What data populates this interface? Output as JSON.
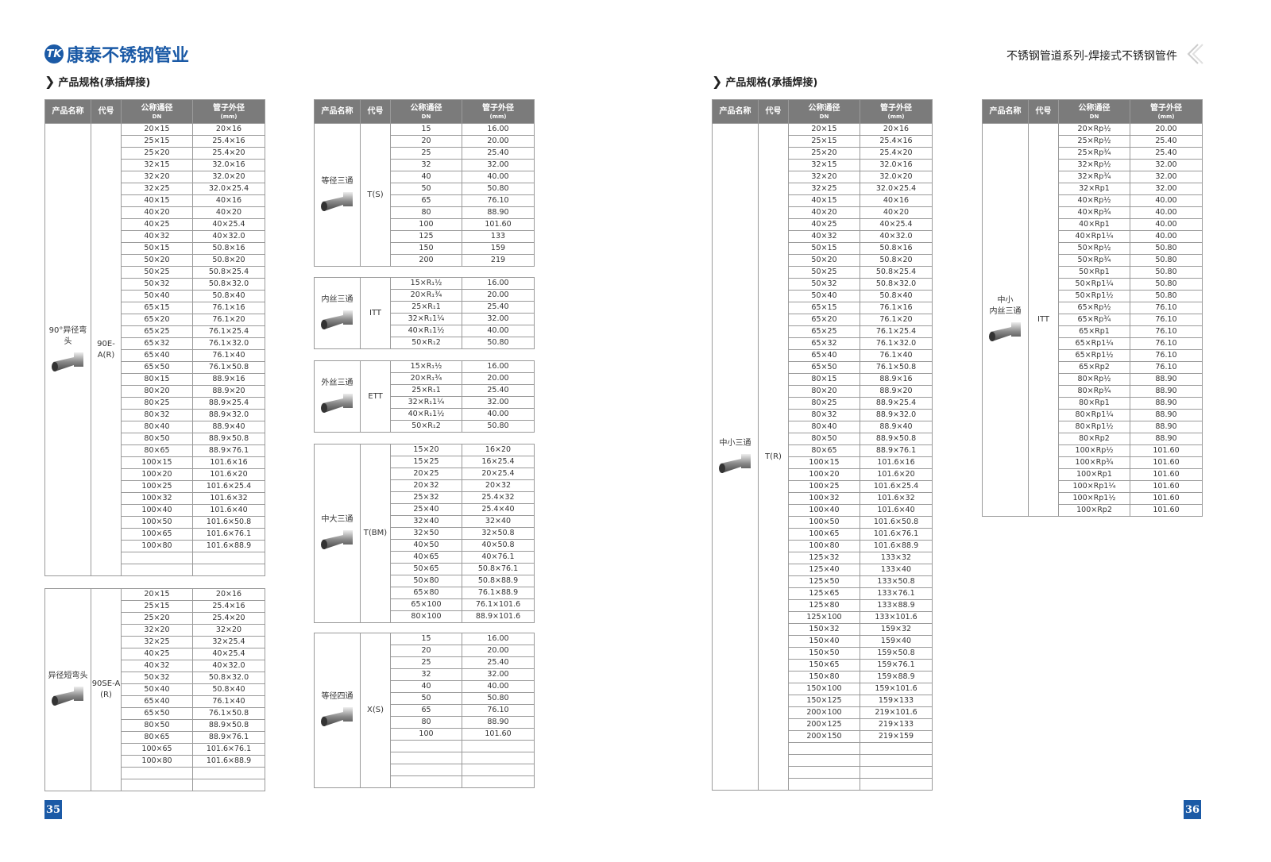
{
  "header": {
    "brand_mark": "TK",
    "brand_name": "康泰不锈钢管业",
    "series_title": "不锈钢管道系列-焊接式不锈钢管件"
  },
  "sections": {
    "left_title": "产品规格(承插焊接)",
    "right_title": "产品规格(承插焊接)"
  },
  "columns": {
    "name": "产品名称",
    "code": "代号",
    "dn": "公称通径",
    "dn_unit": "DN",
    "od": "管子外径",
    "od_unit": "(mm)"
  },
  "tables": {
    "elbow_90_reducing": {
      "name": "90°异径弯头",
      "code": "90E-A(R)",
      "header": true,
      "empty_rows": 2,
      "rows": [
        [
          "20×15",
          "20×16"
        ],
        [
          "25×15",
          "25.4×16"
        ],
        [
          "25×20",
          "25.4×20"
        ],
        [
          "32×15",
          "32.0×16"
        ],
        [
          "32×20",
          "32.0×20"
        ],
        [
          "32×25",
          "32.0×25.4"
        ],
        [
          "40×15",
          "40×16"
        ],
        [
          "40×20",
          "40×20"
        ],
        [
          "40×25",
          "40×25.4"
        ],
        [
          "40×32",
          "40×32.0"
        ],
        [
          "50×15",
          "50.8×16"
        ],
        [
          "50×20",
          "50.8×20"
        ],
        [
          "50×25",
          "50.8×25.4"
        ],
        [
          "50×32",
          "50.8×32.0"
        ],
        [
          "50×40",
          "50.8×40"
        ],
        [
          "65×15",
          "76.1×16"
        ],
        [
          "65×20",
          "76.1×20"
        ],
        [
          "65×25",
          "76.1×25.4"
        ],
        [
          "65×32",
          "76.1×32.0"
        ],
        [
          "65×40",
          "76.1×40"
        ],
        [
          "65×50",
          "76.1×50.8"
        ],
        [
          "80×15",
          "88.9×16"
        ],
        [
          "80×20",
          "88.9×20"
        ],
        [
          "80×25",
          "88.9×25.4"
        ],
        [
          "80×32",
          "88.9×32.0"
        ],
        [
          "80×40",
          "88.9×40"
        ],
        [
          "80×50",
          "88.9×50.8"
        ],
        [
          "80×65",
          "88.9×76.1"
        ],
        [
          "100×15",
          "101.6×16"
        ],
        [
          "100×20",
          "101.6×20"
        ],
        [
          "100×25",
          "101.6×25.4"
        ],
        [
          "100×32",
          "101.6×32"
        ],
        [
          "100×40",
          "101.6×40"
        ],
        [
          "100×50",
          "101.6×50.8"
        ],
        [
          "100×65",
          "101.6×76.1"
        ],
        [
          "100×80",
          "101.6×88.9"
        ]
      ]
    },
    "short_elbow_reducing": {
      "name": "异径短弯头",
      "code": "90SE-A (R)",
      "header": false,
      "empty_rows": 2,
      "rows": [
        [
          "20×15",
          "20×16"
        ],
        [
          "25×15",
          "25.4×16"
        ],
        [
          "25×20",
          "25.4×20"
        ],
        [
          "32×20",
          "32×20"
        ],
        [
          "32×25",
          "32×25.4"
        ],
        [
          "40×25",
          "40×25.4"
        ],
        [
          "40×32",
          "40×32.0"
        ],
        [
          "50×32",
          "50.8×32.0"
        ],
        [
          "50×40",
          "50.8×40"
        ],
        [
          "65×40",
          "76.1×40"
        ],
        [
          "65×50",
          "76.1×50.8"
        ],
        [
          "80×50",
          "88.9×50.8"
        ],
        [
          "80×65",
          "88.9×76.1"
        ],
        [
          "100×65",
          "101.6×76.1"
        ],
        [
          "100×80",
          "101.6×88.9"
        ]
      ]
    },
    "equal_tee": {
      "name": "等径三通",
      "code": "T(S)",
      "header": true,
      "empty_rows": 0,
      "rows": [
        [
          "15",
          "16.00"
        ],
        [
          "20",
          "20.00"
        ],
        [
          "25",
          "25.40"
        ],
        [
          "32",
          "32.00"
        ],
        [
          "40",
          "40.00"
        ],
        [
          "50",
          "50.80"
        ],
        [
          "65",
          "76.10"
        ],
        [
          "80",
          "88.90"
        ],
        [
          "100",
          "101.60"
        ],
        [
          "125",
          "133"
        ],
        [
          "150",
          "159"
        ],
        [
          "200",
          "219"
        ]
      ]
    },
    "female_thread_tee": {
      "name": "内丝三通",
      "code": "ITT",
      "header": false,
      "empty_rows": 0,
      "rows": [
        [
          "15×R₁½",
          "16.00"
        ],
        [
          "20×R₁¾",
          "20.00"
        ],
        [
          "25×R₁1",
          "25.40"
        ],
        [
          "32×R₁1¼",
          "32.00"
        ],
        [
          "40×R₁1½",
          "40.00"
        ],
        [
          "50×R₁2",
          "50.80"
        ]
      ]
    },
    "male_thread_tee": {
      "name": "外丝三通",
      "code": "ETT",
      "header": false,
      "empty_rows": 0,
      "rows": [
        [
          "15×R₁½",
          "16.00"
        ],
        [
          "20×R₁¾",
          "20.00"
        ],
        [
          "25×R₁1",
          "25.40"
        ],
        [
          "32×R₁1¼",
          "32.00"
        ],
        [
          "40×R₁1½",
          "40.00"
        ],
        [
          "50×R₁2",
          "50.80"
        ]
      ]
    },
    "large_reducing_tee": {
      "name": "中大三通",
      "code": "T(BM)",
      "header": false,
      "empty_rows": 0,
      "rows": [
        [
          "15×20",
          "16×20"
        ],
        [
          "15×25",
          "16×25.4"
        ],
        [
          "20×25",
          "20×25.4"
        ],
        [
          "20×32",
          "20×32"
        ],
        [
          "25×32",
          "25.4×32"
        ],
        [
          "25×40",
          "25.4×40"
        ],
        [
          "32×40",
          "32×40"
        ],
        [
          "32×50",
          "32×50.8"
        ],
        [
          "40×50",
          "40×50.8"
        ],
        [
          "40×65",
          "40×76.1"
        ],
        [
          "50×65",
          "50.8×76.1"
        ],
        [
          "50×80",
          "50.8×88.9"
        ],
        [
          "65×80",
          "76.1×88.9"
        ],
        [
          "65×100",
          "76.1×101.6"
        ],
        [
          "80×100",
          "88.9×101.6"
        ]
      ]
    },
    "equal_cross": {
      "name": "等径四通",
      "code": "X(S)",
      "header": false,
      "empty_rows": 4,
      "rows": [
        [
          "15",
          "16.00"
        ],
        [
          "20",
          "20.00"
        ],
        [
          "25",
          "25.40"
        ],
        [
          "32",
          "32.00"
        ],
        [
          "40",
          "40.00"
        ],
        [
          "50",
          "50.80"
        ],
        [
          "65",
          "76.10"
        ],
        [
          "80",
          "88.90"
        ],
        [
          "100",
          "101.60"
        ]
      ]
    },
    "small_reducing_tee": {
      "name": "中小三通",
      "code": "T(R)",
      "header": true,
      "empty_rows": 4,
      "rows": [
        [
          "20×15",
          "20×16"
        ],
        [
          "25×15",
          "25.4×16"
        ],
        [
          "25×20",
          "25.4×20"
        ],
        [
          "32×15",
          "32.0×16"
        ],
        [
          "32×20",
          "32.0×20"
        ],
        [
          "32×25",
          "32.0×25.4"
        ],
        [
          "40×15",
          "40×16"
        ],
        [
          "40×20",
          "40×20"
        ],
        [
          "40×25",
          "40×25.4"
        ],
        [
          "40×32",
          "40×32.0"
        ],
        [
          "50×15",
          "50.8×16"
        ],
        [
          "50×20",
          "50.8×20"
        ],
        [
          "50×25",
          "50.8×25.4"
        ],
        [
          "50×32",
          "50.8×32.0"
        ],
        [
          "50×40",
          "50.8×40"
        ],
        [
          "65×15",
          "76.1×16"
        ],
        [
          "65×20",
          "76.1×20"
        ],
        [
          "65×25",
          "76.1×25.4"
        ],
        [
          "65×32",
          "76.1×32.0"
        ],
        [
          "65×40",
          "76.1×40"
        ],
        [
          "65×50",
          "76.1×50.8"
        ],
        [
          "80×15",
          "88.9×16"
        ],
        [
          "80×20",
          "88.9×20"
        ],
        [
          "80×25",
          "88.9×25.4"
        ],
        [
          "80×32",
          "88.9×32.0"
        ],
        [
          "80×40",
          "88.9×40"
        ],
        [
          "80×50",
          "88.9×50.8"
        ],
        [
          "80×65",
          "88.9×76.1"
        ],
        [
          "100×15",
          "101.6×16"
        ],
        [
          "100×20",
          "101.6×20"
        ],
        [
          "100×25",
          "101.6×25.4"
        ],
        [
          "100×32",
          "101.6×32"
        ],
        [
          "100×40",
          "101.6×40"
        ],
        [
          "100×50",
          "101.6×50.8"
        ],
        [
          "100×65",
          "101.6×76.1"
        ],
        [
          "100×80",
          "101.6×88.9"
        ],
        [
          "125×32",
          "133×32"
        ],
        [
          "125×40",
          "133×40"
        ],
        [
          "125×50",
          "133×50.8"
        ],
        [
          "125×65",
          "133×76.1"
        ],
        [
          "125×80",
          "133×88.9"
        ],
        [
          "125×100",
          "133×101.6"
        ],
        [
          "150×32",
          "159×32"
        ],
        [
          "150×40",
          "159×40"
        ],
        [
          "150×50",
          "159×50.8"
        ],
        [
          "150×65",
          "159×76.1"
        ],
        [
          "150×80",
          "159×88.9"
        ],
        [
          "150×100",
          "159×101.6"
        ],
        [
          "150×125",
          "159×133"
        ],
        [
          "200×100",
          "219×101.6"
        ],
        [
          "200×125",
          "219×133"
        ],
        [
          "200×150",
          "219×159"
        ]
      ]
    },
    "small_female_thread_tee": {
      "name": "中小\n内丝三通",
      "code": "ITT",
      "header": true,
      "empty_rows": 0,
      "rows": [
        [
          "20×Rp½",
          "20.00"
        ],
        [
          "25×Rp½",
          "25.40"
        ],
        [
          "25×Rp¾",
          "25.40"
        ],
        [
          "32×Rp½",
          "32.00"
        ],
        [
          "32×Rp¾",
          "32.00"
        ],
        [
          "32×Rp1",
          "32.00"
        ],
        [
          "40×Rp½",
          "40.00"
        ],
        [
          "40×Rp¾",
          "40.00"
        ],
        [
          "40×Rp1",
          "40.00"
        ],
        [
          "40×Rp1¼",
          "40.00"
        ],
        [
          "50×Rp½",
          "50.80"
        ],
        [
          "50×Rp¾",
          "50.80"
        ],
        [
          "50×Rp1",
          "50.80"
        ],
        [
          "50×Rp1¼",
          "50.80"
        ],
        [
          "50×Rp1½",
          "50.80"
        ],
        [
          "65×Rp½",
          "76.10"
        ],
        [
          "65×Rp¾",
          "76.10"
        ],
        [
          "65×Rp1",
          "76.10"
        ],
        [
          "65×Rp1¼",
          "76.10"
        ],
        [
          "65×Rp1½",
          "76.10"
        ],
        [
          "65×Rp2",
          "76.10"
        ],
        [
          "80×Rp½",
          "88.90"
        ],
        [
          "80×Rp¾",
          "88.90"
        ],
        [
          "80×Rp1",
          "88.90"
        ],
        [
          "80×Rp1¼",
          "88.90"
        ],
        [
          "80×Rp1½",
          "88.90"
        ],
        [
          "80×Rp2",
          "88.90"
        ],
        [
          "100×Rp½",
          "101.60"
        ],
        [
          "100×Rp¾",
          "101.60"
        ],
        [
          "100×Rp1",
          "101.60"
        ],
        [
          "100×Rp1¼",
          "101.60"
        ],
        [
          "100×Rp1½",
          "101.60"
        ],
        [
          "100×Rp2",
          "101.60"
        ]
      ]
    }
  },
  "pages": {
    "left": "35",
    "right": "36"
  },
  "colors": {
    "brand": "#1b5aa6",
    "header_bg": "#7b7b7b",
    "border": "#9a9a9a"
  },
  "icons": {
    "section_marker": "chevron-right-icon",
    "corner_decoration": "double-chevron-left-icon"
  }
}
